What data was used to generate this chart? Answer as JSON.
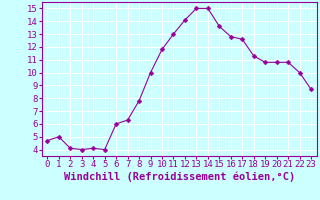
{
  "x": [
    0,
    1,
    2,
    3,
    4,
    5,
    6,
    7,
    8,
    9,
    10,
    11,
    12,
    13,
    14,
    15,
    16,
    17,
    18,
    19,
    20,
    21,
    22,
    23
  ],
  "y": [
    4.7,
    5.0,
    4.1,
    4.0,
    4.1,
    4.0,
    6.0,
    6.3,
    7.8,
    10.0,
    11.8,
    13.0,
    14.1,
    15.0,
    15.0,
    13.6,
    12.8,
    12.6,
    11.3,
    10.8,
    10.8,
    10.8,
    10.0,
    8.7
  ],
  "line_color": "#990099",
  "marker": "D",
  "marker_size": 2.5,
  "bg_color": "#ccffff",
  "grid_color": "#ffffff",
  "xlabel": "Windchill (Refroidissement éolien,°C)",
  "xlabel_color": "#990099",
  "xlabel_fontsize": 7.5,
  "xlim": [
    -0.5,
    23.5
  ],
  "ylim": [
    3.5,
    15.5
  ],
  "yticks": [
    4,
    5,
    6,
    7,
    8,
    9,
    10,
    11,
    12,
    13,
    14,
    15
  ],
  "xticks": [
    0,
    1,
    2,
    3,
    4,
    5,
    6,
    7,
    8,
    9,
    10,
    11,
    12,
    13,
    14,
    15,
    16,
    17,
    18,
    19,
    20,
    21,
    22,
    23
  ],
  "tick_label_fontsize": 6.5,
  "tick_color": "#990099",
  "spine_color": "#990099",
  "linewidth": 0.8
}
